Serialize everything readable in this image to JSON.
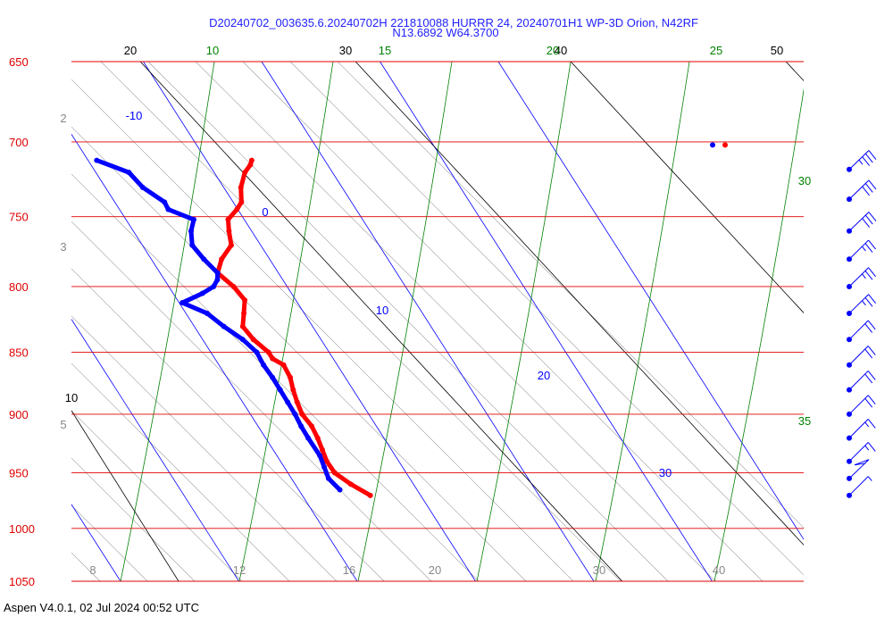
{
  "title_line1": "D20240702_003635.6.20240702H 221810088 HURRR 24, 20240701H1 WP-3D Orion, N42RF",
  "title_line2": "N13.6892 W64.3700",
  "footer": "Aspen V4.0.1, 02 Jul 2024  00:52 UTC",
  "colors": {
    "isobar": "#e00000",
    "mixing_ratio": "#0000ff",
    "moist_adiabat": "#008000",
    "dry_adiabat": "#000000",
    "guide": "#999999",
    "temperature": "#ff0000",
    "dewpoint": "#0000ff",
    "wind": "#0000ff"
  },
  "chart_data": {
    "type": "skew-t log-p",
    "pressure_ticks": [
      "650",
      "700",
      "750",
      "800",
      "850",
      "900",
      "950",
      "1000",
      "1050"
    ],
    "pressure_range": [
      650,
      1050
    ],
    "bottom_temp_labels": [
      "8",
      "12",
      "16",
      "20",
      "30",
      "40"
    ],
    "left_grey_labels": [
      "2",
      "3",
      "5"
    ],
    "dry_adiabat_labels": [
      {
        "text": "20",
        "theta": 20
      },
      {
        "text": "30",
        "theta": 30
      },
      {
        "text": "40",
        "theta": 40
      },
      {
        "text": "50",
        "theta": 50
      }
    ],
    "moist_adiabat_labels": [
      {
        "text": "10",
        "thetaw": 10
      },
      {
        "text": "15",
        "thetaw": 15
      },
      {
        "text": "20",
        "thetaw": 20
      },
      {
        "text": "25",
        "thetaw": 25
      },
      {
        "text": "30",
        "thetaw": 30
      },
      {
        "text": "35",
        "thetaw": 35
      }
    ],
    "mixing_ratio_labels": [
      {
        "text": "-10",
        "value": -10
      },
      {
        "text": "0",
        "value": 0
      },
      {
        "text": "10",
        "value": 10
      },
      {
        "text": "20",
        "value": 20
      },
      {
        "text": "30",
        "value": 30
      }
    ],
    "left_black_label": "10",
    "temperature_profile": [
      [
        970,
        26.1
      ],
      [
        960,
        25.4
      ],
      [
        950,
        25.0
      ],
      [
        940,
        25.3
      ],
      [
        930,
        25.9
      ],
      [
        920,
        26.5
      ],
      [
        910,
        27.0
      ],
      [
        900,
        27.2
      ],
      [
        890,
        27.8
      ],
      [
        880,
        28.5
      ],
      [
        870,
        29.3
      ],
      [
        860,
        29.8
      ],
      [
        855,
        29.4
      ],
      [
        850,
        29.6
      ],
      [
        840,
        29.4
      ],
      [
        830,
        29.6
      ],
      [
        820,
        30.8
      ],
      [
        810,
        32.0
      ],
      [
        800,
        32.2
      ],
      [
        790,
        32.0
      ],
      [
        780,
        33.5
      ],
      [
        770,
        35.5
      ],
      [
        760,
        36.5
      ],
      [
        752,
        37.4
      ],
      [
        745,
        39.0
      ],
      [
        740,
        40.0
      ],
      [
        730,
        41.2
      ],
      [
        720,
        42.8
      ],
      [
        715,
        43.9
      ],
      [
        712,
        44.4
      ]
    ],
    "dewpoint_profile": [
      [
        965,
        24.0
      ],
      [
        955,
        24.0
      ],
      [
        945,
        24.6
      ],
      [
        935,
        25.2
      ],
      [
        920,
        25.7
      ],
      [
        910,
        26.1
      ],
      [
        900,
        26.6
      ],
      [
        890,
        27.0
      ],
      [
        880,
        27.4
      ],
      [
        870,
        27.8
      ],
      [
        860,
        28.1
      ],
      [
        850,
        28.6
      ],
      [
        840,
        28.5
      ],
      [
        830,
        28.0
      ],
      [
        820,
        27.7
      ],
      [
        812,
        26.5
      ],
      [
        805,
        29.0
      ],
      [
        800,
        30.5
      ],
      [
        795,
        31.4
      ],
      [
        790,
        32.0
      ],
      [
        780,
        32.0
      ],
      [
        770,
        32.2
      ],
      [
        760,
        33.3
      ],
      [
        752,
        34.5
      ],
      [
        745,
        33.2
      ],
      [
        740,
        33.5
      ],
      [
        730,
        32.9
      ],
      [
        720,
        33.0
      ],
      [
        712,
        31.3
      ]
    ],
    "wind_barbs": [
      {
        "p": 718,
        "speed_kt": 35,
        "dir_deg": 100
      },
      {
        "p": 738,
        "speed_kt": 30,
        "dir_deg": 100
      },
      {
        "p": 760,
        "speed_kt": 30,
        "dir_deg": 100
      },
      {
        "p": 780,
        "speed_kt": 25,
        "dir_deg": 95
      },
      {
        "p": 800,
        "speed_kt": 25,
        "dir_deg": 95
      },
      {
        "p": 820,
        "speed_kt": 25,
        "dir_deg": 95
      },
      {
        "p": 840,
        "speed_kt": 20,
        "dir_deg": 90
      },
      {
        "p": 860,
        "speed_kt": 20,
        "dir_deg": 90
      },
      {
        "p": 880,
        "speed_kt": 20,
        "dir_deg": 90
      },
      {
        "p": 900,
        "speed_kt": 20,
        "dir_deg": 90
      },
      {
        "p": 920,
        "speed_kt": 15,
        "dir_deg": 90
      },
      {
        "p": 940,
        "speed_kt": 15,
        "dir_deg": 90
      },
      {
        "p": 955,
        "speed_kt": 50,
        "dir_deg": 100
      },
      {
        "p": 970,
        "speed_kt": 5,
        "dir_deg": 90
      }
    ]
  }
}
